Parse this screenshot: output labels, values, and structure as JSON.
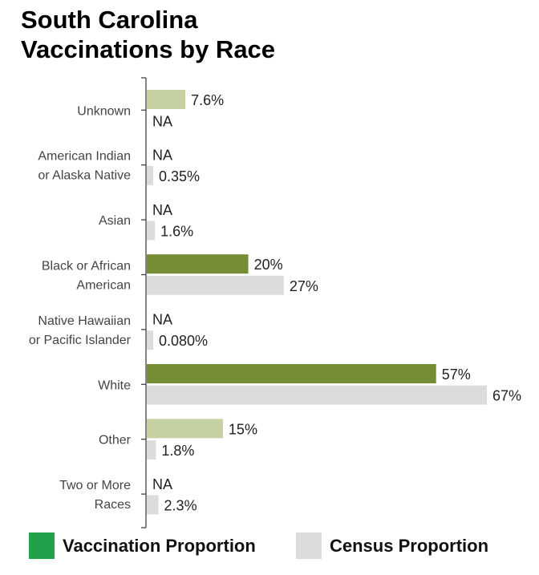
{
  "title_lines": [
    "South Carolina",
    "Vaccinations by Race"
  ],
  "chart_data": {
    "type": "bar",
    "orientation": "horizontal",
    "title": "South Carolina Vaccinations by Race",
    "categories": [
      [
        "Unknown"
      ],
      [
        "American Indian",
        "or Alaska Native"
      ],
      [
        "Asian"
      ],
      [
        "Black or African",
        "American"
      ],
      [
        "Native Hawaiian",
        "or Pacific Islander"
      ],
      [
        "White"
      ],
      [
        "Other"
      ],
      [
        "Two or More",
        "Races"
      ]
    ],
    "series": [
      {
        "name": "Vaccination Proportion",
        "values": [
          7.6,
          null,
          null,
          20,
          null,
          57,
          15,
          null
        ],
        "labels": [
          "7.6%",
          "NA",
          "NA",
          "20%",
          "NA",
          "57%",
          "15%",
          "NA"
        ],
        "colors": [
          "#c5d1a1",
          null,
          null,
          "#758d35",
          null,
          "#758d35",
          "#c5d1a1",
          null
        ]
      },
      {
        "name": "Census Proportion",
        "values": [
          null,
          0.35,
          1.6,
          27,
          0.08,
          67,
          1.8,
          2.3
        ],
        "labels": [
          "NA",
          "0.35%",
          "1.6%",
          "27%",
          "0.080%",
          "67%",
          "1.8%",
          "2.3%"
        ],
        "color": "#dcdcdc"
      }
    ],
    "xlim": [
      0,
      67
    ],
    "grid": false,
    "legend": "bottom"
  },
  "legend": [
    {
      "label": "Vaccination Proportion",
      "color": "#20a24a"
    },
    {
      "label": "Census Proportion",
      "color": "#dcdcdc"
    }
  ]
}
